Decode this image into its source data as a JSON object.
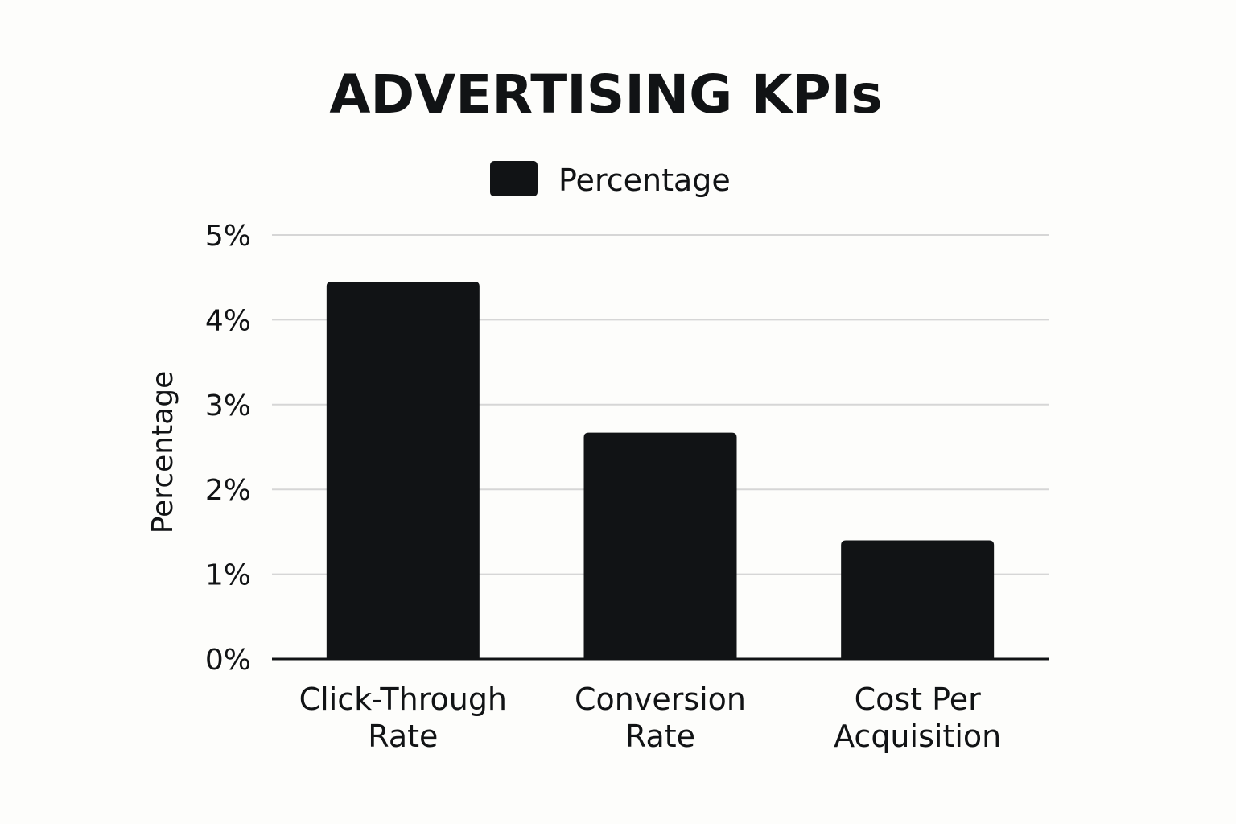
{
  "chart_data": {
    "type": "bar",
    "title": "ADVERTISING KPIs",
    "ylabel": "Percentage",
    "xlabel": "",
    "legend": {
      "placement": "top-center",
      "entries": [
        "Percentage"
      ]
    },
    "categories": [
      [
        "Click-Through",
        "Rate"
      ],
      [
        "Conversion",
        "Rate"
      ],
      [
        "Cost Per",
        "Acquisition"
      ]
    ],
    "series": [
      {
        "name": "Percentage",
        "values": [
          4.45,
          2.67,
          1.4
        ]
      }
    ],
    "ylim": [
      0,
      5
    ],
    "yticks": [
      0,
      1,
      2,
      3,
      4,
      5
    ],
    "ytick_labels": [
      "0%",
      "1%",
      "2%",
      "3%",
      "4%",
      "5%"
    ],
    "grid": true,
    "bar_color": "#111315",
    "grid_color": "#d6d6d6",
    "background": "#fdfdfb"
  }
}
